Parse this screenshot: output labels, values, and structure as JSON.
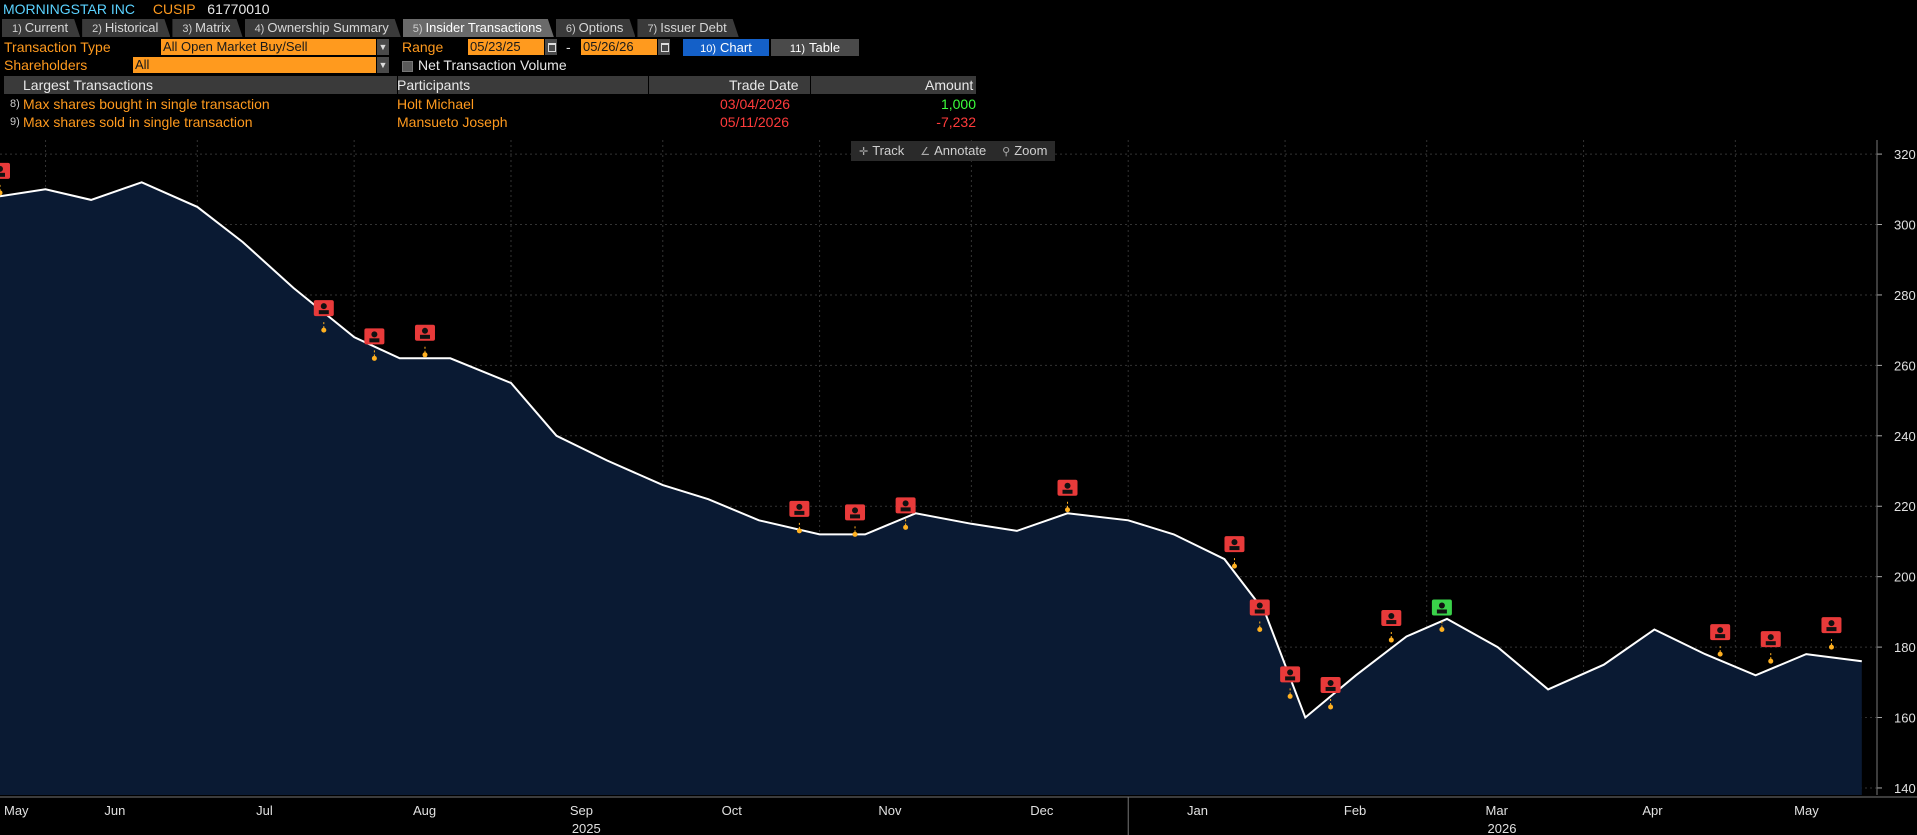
{
  "header": {
    "company": "MORNINGSTAR INC",
    "cusip_label": "CUSIP",
    "cusip": "61770010"
  },
  "tabs": [
    {
      "num": "1)",
      "label": "Current"
    },
    {
      "num": "2)",
      "label": "Historical"
    },
    {
      "num": "3)",
      "label": "Matrix"
    },
    {
      "num": "4)",
      "label": "Ownership Summary"
    },
    {
      "num": "5)",
      "label": "Insider Transactions"
    },
    {
      "num": "6)",
      "label": "Options"
    },
    {
      "num": "7)",
      "label": "Issuer Debt"
    }
  ],
  "filters": {
    "transaction_type_label": "Transaction Type",
    "transaction_type": "All Open Market Buy/Sell",
    "range_label": "Range",
    "range_start": "05/23/25",
    "range_sep": "-",
    "range_end": "05/26/26",
    "chart_btn": {
      "num": "10)",
      "label": "Chart"
    },
    "table_btn": {
      "num": "11)",
      "label": "Table"
    },
    "shareholders_label": "Shareholders",
    "shareholders": "All",
    "net_volume_label": "Net Transaction Volume"
  },
  "largest": {
    "headers": {
      "title": "Largest Transactions",
      "participants": "Participants",
      "trade_date": "Trade Date",
      "amount": "Amount"
    },
    "rows": [
      {
        "num": "8)",
        "desc": "Max shares bought in single transaction",
        "participant": "Holt Michael",
        "date": "03/04/2026",
        "amount": "1,000"
      },
      {
        "num": "9)",
        "desc": "Max shares sold in single transaction",
        "participant": "Mansueto Joseph",
        "date": "05/11/2026",
        "amount": "-7,232"
      }
    ]
  },
  "toolbar": {
    "track": "Track",
    "annotate": "Annotate",
    "zoom": "Zoom"
  },
  "colors": {
    "accent": "#ff9a1e",
    "sell": "#ff3b3b",
    "buy": "#3cff3c",
    "area": "#0a1a33"
  },
  "chart_data": {
    "type": "area",
    "ylim": [
      138,
      324
    ],
    "yticks": [
      140,
      160,
      180,
      200,
      220,
      240,
      260,
      280,
      300,
      320
    ],
    "x_months": [
      "May",
      "Jun",
      "Jul",
      "Aug",
      "Sep",
      "Oct",
      "Nov",
      "Dec",
      "Jan",
      "Feb",
      "Mar",
      "Apr",
      "May"
    ],
    "x_years": [
      "2025",
      "2026"
    ],
    "series": [
      {
        "x": [
          "2025-05-23",
          "2025-06-01",
          "2025-06-10",
          "2025-06-20",
          "2025-07-01",
          "2025-07-10",
          "2025-07-20",
          "2025-08-01",
          "2025-08-10",
          "2025-08-20",
          "2025-09-01",
          "2025-09-10",
          "2025-09-20",
          "2025-10-01",
          "2025-10-10",
          "2025-10-20",
          "2025-11-01",
          "2025-11-10",
          "2025-11-20",
          "2025-12-01",
          "2025-12-10",
          "2025-12-20",
          "2026-01-01",
          "2026-01-10",
          "2026-01-20",
          "2026-01-28",
          "2026-02-05",
          "2026-02-15",
          "2026-02-25",
          "2026-03-05",
          "2026-03-15",
          "2026-03-25",
          "2026-04-05",
          "2026-04-15",
          "2026-04-25",
          "2026-05-05",
          "2026-05-15",
          "2026-05-26"
        ],
        "values": [
          308,
          310,
          307,
          312,
          305,
          295,
          282,
          268,
          262,
          262,
          255,
          240,
          233,
          226,
          222,
          216,
          212,
          212,
          218,
          215,
          213,
          218,
          216,
          212,
          205,
          190,
          160,
          172,
          183,
          188,
          180,
          168,
          175,
          185,
          178,
          172,
          178,
          176
        ]
      }
    ],
    "markers": [
      {
        "date": "2025-05-23",
        "value": 309,
        "type": "sell"
      },
      {
        "date": "2025-07-26",
        "value": 270,
        "type": "sell"
      },
      {
        "date": "2025-08-05",
        "value": 262,
        "type": "sell"
      },
      {
        "date": "2025-08-15",
        "value": 263,
        "type": "sell"
      },
      {
        "date": "2025-10-28",
        "value": 213,
        "type": "sell"
      },
      {
        "date": "2025-11-08",
        "value": 212,
        "type": "sell"
      },
      {
        "date": "2025-11-18",
        "value": 214,
        "type": "sell"
      },
      {
        "date": "2025-12-20",
        "value": 219,
        "type": "sell"
      },
      {
        "date": "2026-01-22",
        "value": 203,
        "type": "sell"
      },
      {
        "date": "2026-01-27",
        "value": 185,
        "type": "sell"
      },
      {
        "date": "2026-02-02",
        "value": 166,
        "type": "sell"
      },
      {
        "date": "2026-02-10",
        "value": 163,
        "type": "sell"
      },
      {
        "date": "2026-02-22",
        "value": 182,
        "type": "sell"
      },
      {
        "date": "2026-03-04",
        "value": 185,
        "type": "buy"
      },
      {
        "date": "2026-04-28",
        "value": 178,
        "type": "sell"
      },
      {
        "date": "2026-05-08",
        "value": 176,
        "type": "sell"
      },
      {
        "date": "2026-05-20",
        "value": 180,
        "type": "sell"
      }
    ]
  }
}
